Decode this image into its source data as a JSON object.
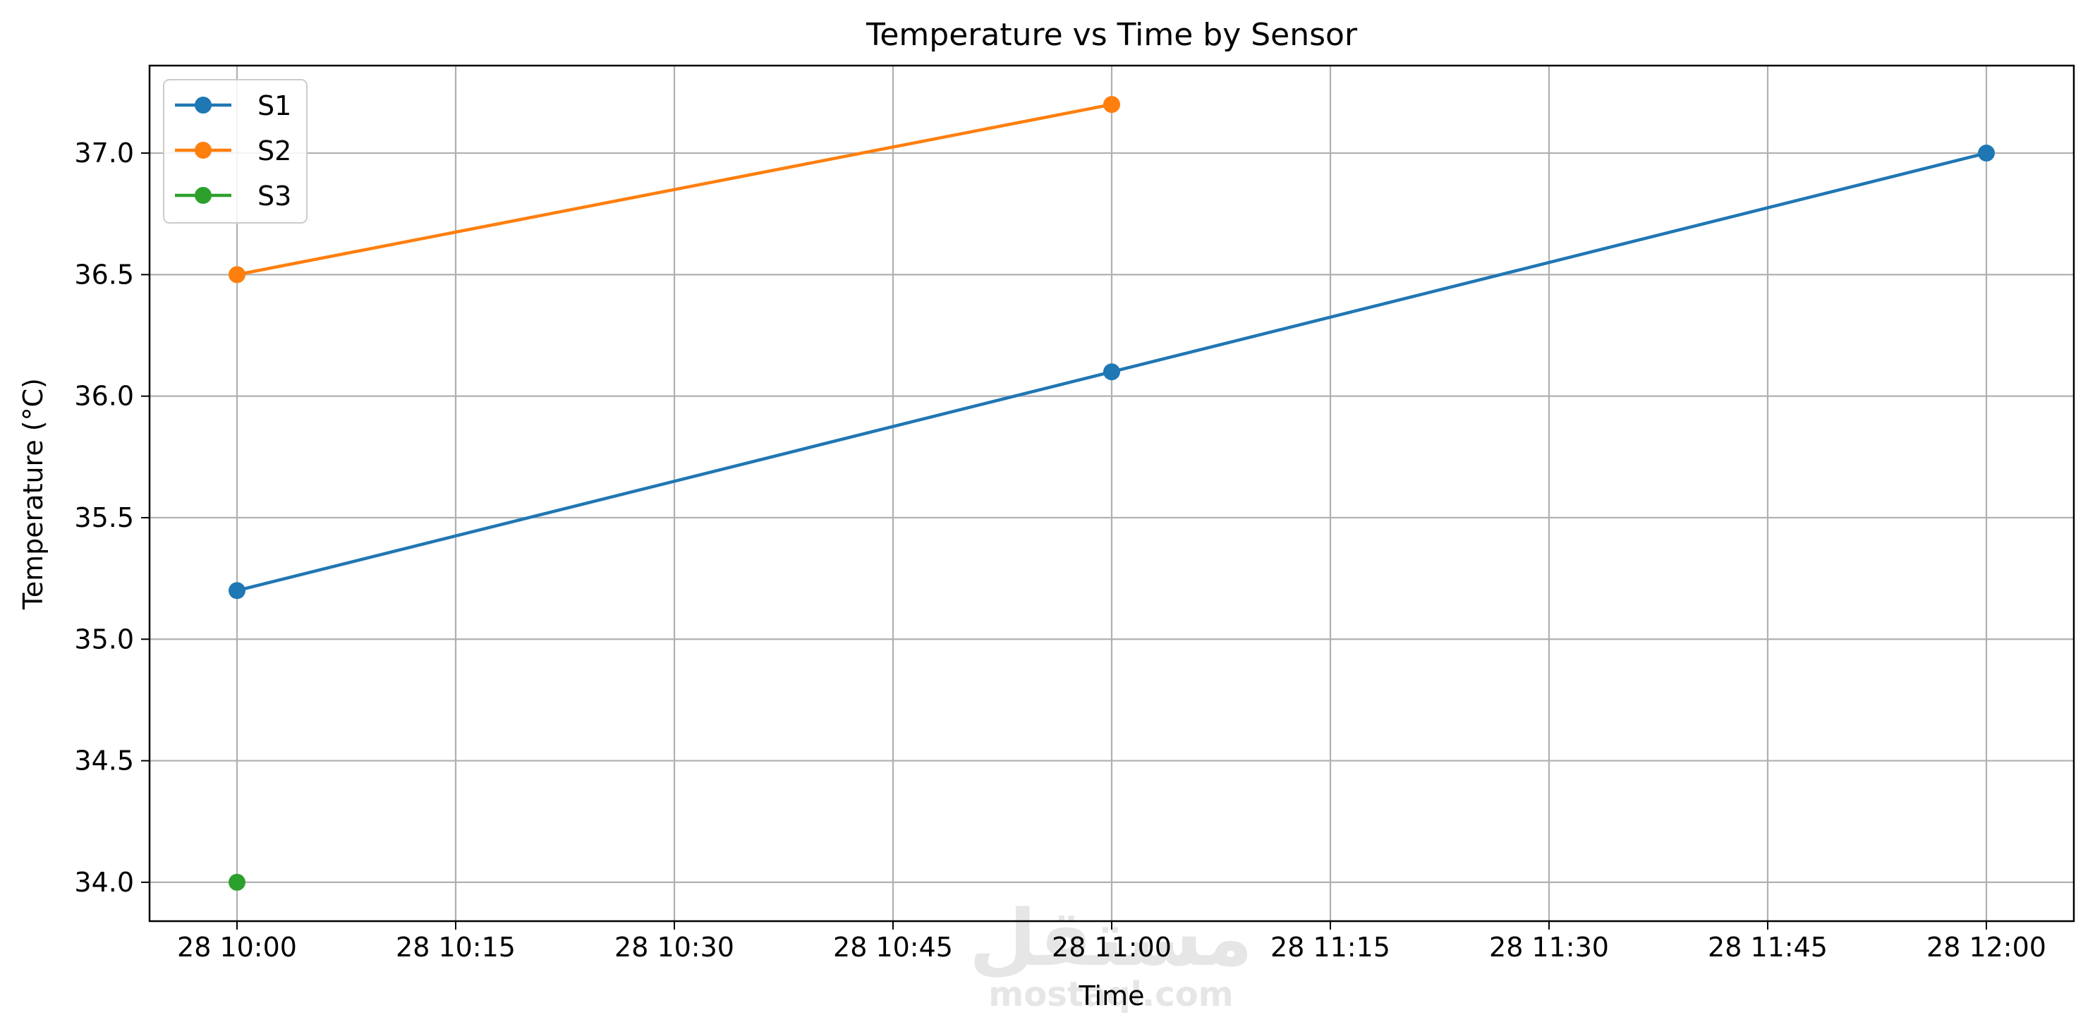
{
  "chart_data": {
    "type": "line",
    "title": "Temperature vs Time by Sensor",
    "xlabel": "Time",
    "ylabel": "Temperature (°C)",
    "x_ticks": [
      "28 10:00",
      "28 10:15",
      "28 10:30",
      "28 10:45",
      "28 11:00",
      "28 11:15",
      "28 11:30",
      "28 11:45",
      "28 12:00"
    ],
    "x_tick_minutes": [
      0,
      15,
      30,
      45,
      60,
      75,
      90,
      105,
      120
    ],
    "xlim_minutes": [
      -6,
      126
    ],
    "y_ticks": [
      "34.0",
      "34.5",
      "35.0",
      "35.5",
      "36.0",
      "36.5",
      "37.0"
    ],
    "y_tick_values": [
      34.0,
      34.5,
      35.0,
      35.5,
      36.0,
      36.5,
      37.0
    ],
    "ylim": [
      33.84,
      37.36
    ],
    "grid": true,
    "legend_placement": "top-left",
    "series": [
      {
        "name": "S1",
        "color": "#1f77b4",
        "points": [
          {
            "x": "28 10:00",
            "y": 35.2
          },
          {
            "x": "28 11:00",
            "y": 36.1
          },
          {
            "x": "28 12:00",
            "y": 37.0
          }
        ]
      },
      {
        "name": "S2",
        "color": "#ff7f0e",
        "points": [
          {
            "x": "28 10:00",
            "y": 36.5
          },
          {
            "x": "28 11:00",
            "y": 37.2
          }
        ]
      },
      {
        "name": "S3",
        "color": "#2ca02c",
        "points": [
          {
            "x": "28 10:00",
            "y": 34.0
          }
        ]
      }
    ]
  },
  "watermark": {
    "main": "مستقل",
    "sub": "mostaql.com"
  }
}
